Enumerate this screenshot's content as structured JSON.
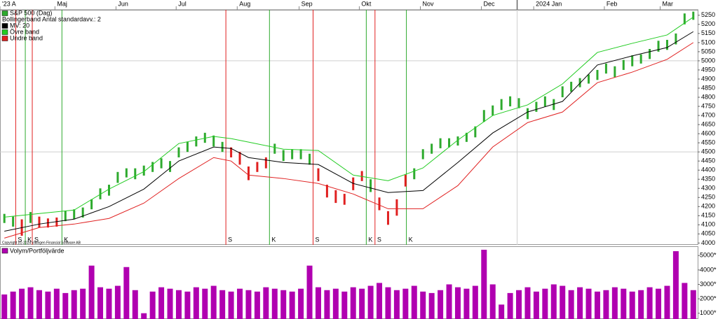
{
  "chart_data": [
    {
      "type": "range",
      "indicator_label": "Bollingerband Antal standardavv.: 2",
      "copyright": "Copyright (c) 2024 Vikingen Financial Software AB",
      "xlim": [
        -0.5,
        79.5
      ],
      "xticks": [
        {
          "value": -0.5,
          "label": "'23 A"
        },
        {
          "value": 5.8,
          "label": "Maj"
        },
        {
          "value": 12.8,
          "label": "Jun"
        },
        {
          "value": 19.7,
          "label": "Jul"
        },
        {
          "value": 26.7,
          "label": "Aug"
        },
        {
          "value": 33.8,
          "label": "Sep"
        },
        {
          "value": 40.7,
          "label": "Okt"
        },
        {
          "value": 47.7,
          "label": "Nov"
        },
        {
          "value": 54.7,
          "label": "Dec"
        },
        {
          "value": 60.7,
          "label": "2024 Jan"
        },
        {
          "value": 68.8,
          "label": "Feb"
        },
        {
          "value": 75.2,
          "label": "Mar"
        }
      ],
      "year_line": 58.8,
      "ylim": [
        3990,
        5280
      ],
      "yticks": [
        4000,
        4050,
        4100,
        4150,
        4200,
        4250,
        4300,
        4350,
        4400,
        4450,
        4500,
        4550,
        4600,
        4650,
        4700,
        4750,
        4800,
        4850,
        4900,
        4950,
        5000,
        5050,
        5100,
        5150,
        5200,
        5250
      ],
      "ygrid": [
        4500,
        5000
      ],
      "signals": [
        {
          "x": 1.3,
          "label": "S",
          "color": "#e02020"
        },
        {
          "x": 2.4,
          "label": "K",
          "color": "#2eaa2e"
        },
        {
          "x": 3.2,
          "label": "S",
          "color": "#e02020"
        },
        {
          "x": 6.6,
          "label": "K",
          "color": "#2eaa2e"
        },
        {
          "x": 25.4,
          "label": "S",
          "color": "#e02020"
        },
        {
          "x": 30.4,
          "label": "K",
          "color": "#2eaa2e"
        },
        {
          "x": 35.4,
          "label": "S",
          "color": "#e02020"
        },
        {
          "x": 41.5,
          "label": "K",
          "color": "#2eaa2e"
        },
        {
          "x": 42.5,
          "label": "S",
          "color": "#e02020"
        },
        {
          "x": 46.1,
          "label": "K",
          "color": "#2eaa2e"
        }
      ],
      "series": [
        {
          "name": "S&P 500 (Dag)",
          "color": "#2eaa2e",
          "high": [
            4160,
            4145,
            4130,
            4170,
            4145,
            4135,
            4140,
            4175,
            4185,
            4195,
            4240,
            4300,
            4320,
            4390,
            4410,
            4410,
            4425,
            4445,
            4465,
            4450,
            4525,
            4555,
            4585,
            4605,
            4590,
            4555,
            4525,
            4500,
            4420,
            4445,
            4470,
            4545,
            4510,
            4515,
            4515,
            4490,
            4410,
            4320,
            4290,
            4270,
            4360,
            4395,
            4350,
            4250,
            4175,
            4240,
            4375,
            4410,
            4515,
            4545,
            4575,
            4575,
            4585,
            4605,
            4640,
            4730,
            4755,
            4790,
            4805,
            4795,
            4740,
            4775,
            4805,
            4790,
            4860,
            4885,
            4905,
            4925,
            4950,
            4985,
            4970,
            5005,
            5030,
            5035,
            5065,
            5110,
            5115,
            5150,
            5260,
            5270
          ],
          "low": [
            4110,
            4090,
            4040,
            4110,
            4085,
            4085,
            4090,
            4120,
            4130,
            4140,
            4185,
            4240,
            4260,
            4330,
            4360,
            4350,
            4370,
            4390,
            4410,
            4390,
            4470,
            4500,
            4530,
            4550,
            4530,
            4500,
            4470,
            4430,
            4345,
            4390,
            4410,
            4490,
            4450,
            4460,
            4460,
            4430,
            4340,
            4250,
            4220,
            4210,
            4290,
            4340,
            4280,
            4180,
            4100,
            4150,
            4310,
            4350,
            4460,
            4490,
            4520,
            4525,
            4535,
            4555,
            4580,
            4665,
            4700,
            4730,
            4750,
            4740,
            4680,
            4720,
            4750,
            4730,
            4800,
            4830,
            4855,
            4875,
            4895,
            4930,
            4910,
            4950,
            4970,
            4985,
            5010,
            5050,
            5060,
            5090,
            5200,
            5225
          ]
        },
        {
          "name": "MV: 20",
          "color": "#000000",
          "x": [
            0,
            4,
            8,
            12,
            16,
            20,
            24,
            26,
            28,
            32,
            36,
            40,
            44,
            48,
            52,
            56,
            60,
            64,
            68,
            72,
            76,
            79
          ],
          "values": [
            4065,
            4104,
            4131,
            4200,
            4296,
            4450,
            4527,
            4519,
            4469,
            4442,
            4431,
            4327,
            4277,
            4288,
            4442,
            4604,
            4719,
            4777,
            4977,
            5027,
            5073,
            5160
          ]
        },
        {
          "name": "Övre band",
          "color": "#22cc22",
          "x": [
            0,
            4,
            8,
            12,
            16,
            20,
            24,
            26,
            28,
            32,
            36,
            40,
            44,
            48,
            52,
            56,
            60,
            64,
            68,
            72,
            76,
            79
          ],
          "values": [
            4142,
            4162,
            4181,
            4296,
            4392,
            4546,
            4585,
            4573,
            4554,
            4515,
            4508,
            4373,
            4342,
            4412,
            4565,
            4700,
            4758,
            4873,
            5046,
            5096,
            5142,
            5240
          ]
        },
        {
          "name": "Undre band",
          "color": "#e02020",
          "x": [
            0,
            4,
            8,
            12,
            16,
            20,
            24,
            26,
            28,
            32,
            36,
            40,
            44,
            48,
            52,
            56,
            60,
            64,
            68,
            72,
            76,
            79
          ],
          "values": [
            4027,
            4085,
            4104,
            4135,
            4219,
            4354,
            4469,
            4450,
            4373,
            4354,
            4327,
            4269,
            4188,
            4188,
            4315,
            4527,
            4661,
            4719,
            4880,
            4938,
            5008,
            5100
          ]
        }
      ]
    },
    {
      "type": "bar",
      "series": [
        {
          "name": "Volym/Portföljvärde",
          "color": "#b000b0",
          "values": [
            2300,
            2500,
            2700,
            2800,
            2600,
            2500,
            2700,
            2400,
            2600,
            2700,
            4300,
            2800,
            2700,
            2900,
            4200,
            2600,
            1000,
            2500,
            2800,
            2700,
            2600,
            2500,
            2800,
            2700,
            2900,
            2600,
            2500,
            2700,
            2600,
            2500,
            2800,
            2700,
            2600,
            2500,
            2700,
            4300,
            2800,
            2600,
            2700,
            2500,
            2800,
            2700,
            2900,
            3100,
            2800,
            2600,
            2700,
            2900,
            2500,
            2400,
            2600,
            3000,
            2800,
            2700,
            2900,
            5400,
            3000,
            1600,
            2400,
            2600,
            2800,
            2500,
            2700,
            3000,
            2900,
            2600,
            2800,
            2700,
            2500,
            2600,
            2800,
            2700,
            2500,
            2600,
            2800,
            2700,
            2900,
            5300,
            3100,
            2600
          ]
        }
      ],
      "ylim": [
        600,
        5400
      ],
      "yticks": [
        {
          "value": 1000,
          "label": "1000*"
        },
        {
          "value": 2000,
          "label": "2000*"
        },
        {
          "value": 3000,
          "label": "3000*"
        },
        {
          "value": 4000,
          "label": "4000*"
        },
        {
          "value": 5000,
          "label": "5000*"
        }
      ]
    }
  ]
}
